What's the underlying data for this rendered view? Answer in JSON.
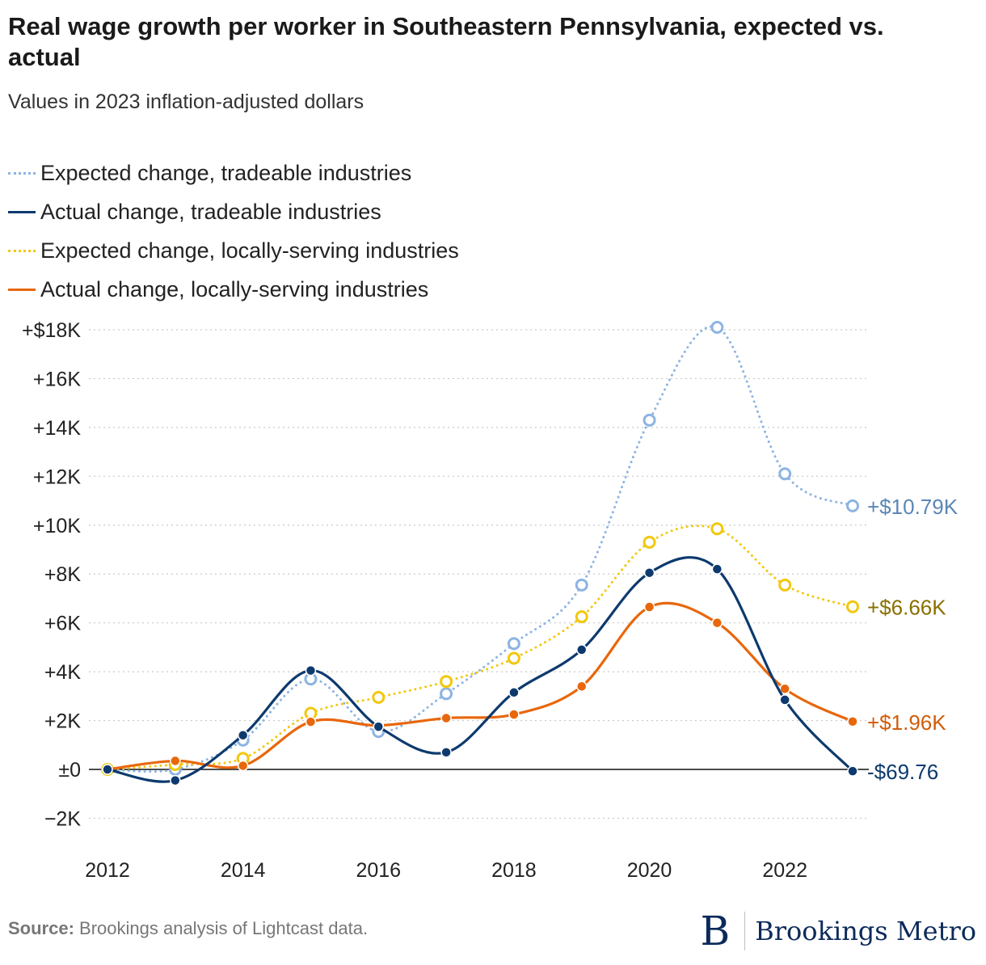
{
  "header": {
    "title": "Real wage growth per worker in Southeastern Pennsylvania, expected vs. actual",
    "subtitle": "Values in 2023 inflation-adjusted dollars"
  },
  "footer": {
    "source_label": "Source:",
    "source_text": " Brookings analysis of Lightcast data.",
    "logo_mark": "B",
    "logo_text": "Brookings Metro"
  },
  "chart_data": {
    "type": "line",
    "title": "Real wage growth per worker in Southeastern Pennsylvania, expected vs. actual",
    "subtitle": "Values in 2023 inflation-adjusted dollars",
    "x": [
      2012,
      2013,
      2014,
      2015,
      2016,
      2017,
      2018,
      2019,
      2020,
      2021,
      2022,
      2023
    ],
    "xticks": [
      2012,
      2014,
      2016,
      2018,
      2020,
      2022
    ],
    "xtick_labels": [
      "2012",
      "2014",
      "2016",
      "2018",
      "2020",
      "2022"
    ],
    "yticks": [
      -2000,
      0,
      2000,
      4000,
      6000,
      8000,
      10000,
      12000,
      14000,
      16000,
      18000
    ],
    "ytick_labels": [
      "−2K",
      "±0",
      "+2K",
      "+4K",
      "+6K",
      "+8K",
      "+10K",
      "+12K",
      "+14K",
      "+16K",
      "+$18K"
    ],
    "xlim": [
      2012,
      2023
    ],
    "ylim": [
      -2500,
      18500
    ],
    "grid": "horizontal dotted",
    "legend_position": "top-left",
    "series": [
      {
        "name": "Expected change, tradeable industries",
        "color": "#8db4e2",
        "style": "dotted",
        "marker": "hollow",
        "values": [
          0,
          0,
          1200,
          3700,
          1550,
          3100,
          5150,
          7550,
          14300,
          18100,
          12100,
          10790
        ],
        "end_label": "+$10.79K",
        "end_label_color": "#5b86b5"
      },
      {
        "name": "Actual change, tradeable industries",
        "color": "#0d3a6e",
        "style": "solid",
        "marker": "filled",
        "values": [
          0,
          -450,
          1400,
          4050,
          1750,
          700,
          3150,
          4900,
          8050,
          8200,
          2850,
          -69.76
        ],
        "end_label": "-$69.76",
        "end_label_color": "#0d3a6e"
      },
      {
        "name": "Expected change, locally-serving industries",
        "color": "#f2c80f",
        "style": "dotted",
        "marker": "hollow",
        "values": [
          0,
          200,
          450,
          2300,
          2950,
          3600,
          4550,
          6250,
          9300,
          9850,
          7550,
          6660
        ],
        "end_label": "+$6.66K",
        "end_label_color": "#8a7000"
      },
      {
        "name": "Actual change, locally-serving industries",
        "color": "#e8670c",
        "style": "solid",
        "marker": "filled",
        "values": [
          0,
          350,
          150,
          1950,
          1800,
          2100,
          2250,
          3400,
          6650,
          6000,
          3300,
          1960
        ],
        "end_label": "+$1.96K",
        "end_label_color": "#d25c0a"
      }
    ]
  }
}
